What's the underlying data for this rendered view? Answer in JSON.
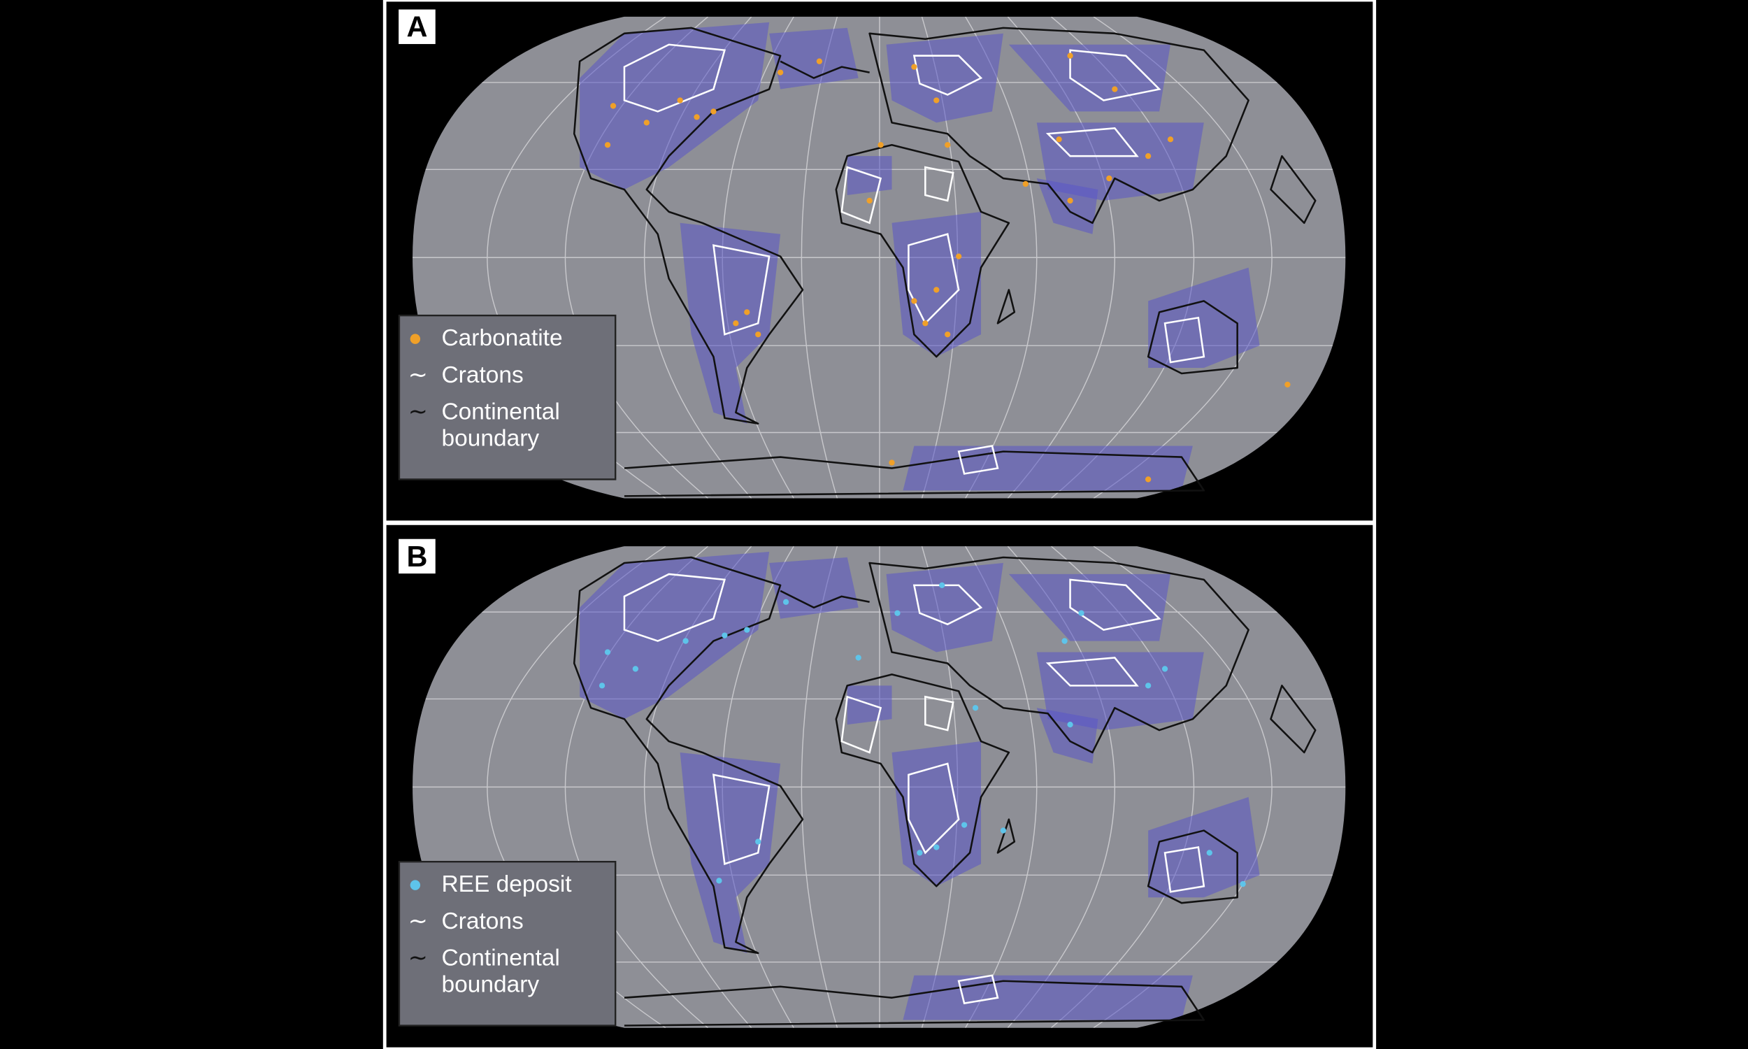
{
  "panels": [
    {
      "label": "A",
      "legend": {
        "points": "Carbonatite",
        "cratons": "Cratons",
        "boundary": "Continental boundary"
      }
    },
    {
      "label": "B",
      "legend": {
        "points": "REE deposit",
        "cratons": "Cratons",
        "boundary": "Continental boundary"
      }
    }
  ]
}
